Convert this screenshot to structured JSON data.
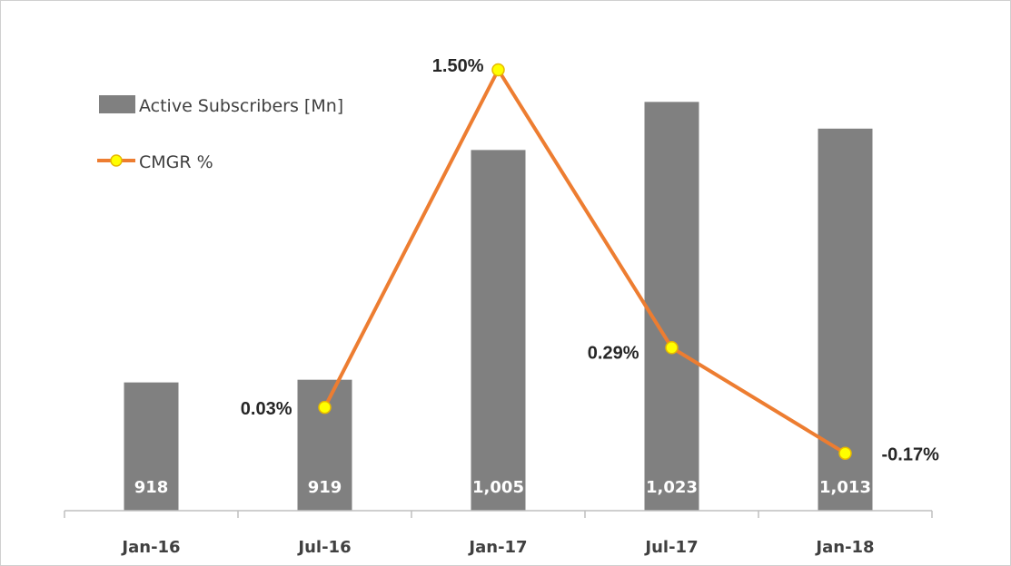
{
  "chart_data": {
    "type": "bar",
    "categories": [
      "Jan-16",
      "Jul-16",
      "Jan-17",
      "Jul-17",
      "Jan-18"
    ],
    "series": [
      {
        "name": "Active Subscribers [Mn]",
        "type": "bar",
        "values": [
          918,
          919,
          1005,
          1023,
          1013
        ],
        "value_labels": [
          "918",
          "919",
          "1,005",
          "1,023",
          "1,013"
        ],
        "color": "#808080"
      },
      {
        "name": "CMGR %",
        "type": "line",
        "values": [
          null,
          0.03,
          1.5,
          0.29,
          -0.17
        ],
        "value_labels": [
          "",
          "0.03%",
          "1.50%",
          "0.29%",
          "-0.17%"
        ],
        "color": "#ED7D31",
        "marker_color": "#FFFF00"
      }
    ],
    "bar_axis_range": [
      870,
      1035
    ],
    "line_axis_range": [
      -0.42,
      1.5
    ],
    "grid": false,
    "legend": "top-left",
    "title": "",
    "xlabel": "",
    "ylabel": ""
  }
}
